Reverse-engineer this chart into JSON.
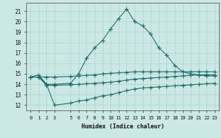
{
  "xlabel": "Humidex (Indice chaleur)",
  "bg_color": "#cce8e4",
  "grid_color": "#b0d8d4",
  "line_color": "#1a6b6b",
  "xlim": [
    -0.5,
    23.5
  ],
  "ylim": [
    11.5,
    21.8
  ],
  "yticks": [
    12,
    13,
    14,
    15,
    16,
    17,
    18,
    19,
    20,
    21
  ],
  "xticks": [
    0,
    1,
    2,
    3,
    5,
    6,
    7,
    8,
    9,
    10,
    11,
    12,
    13,
    14,
    15,
    16,
    17,
    18,
    19,
    20,
    21,
    22,
    23
  ],
  "line1_x": [
    0,
    1,
    2,
    3,
    5,
    6,
    7,
    8,
    9,
    10,
    11,
    12,
    13,
    14,
    15,
    16,
    17,
    18,
    19,
    20,
    21,
    22,
    23
  ],
  "line1_y": [
    14.7,
    14.9,
    14.0,
    14.0,
    14.1,
    15.0,
    16.5,
    17.5,
    18.2,
    19.3,
    20.3,
    21.2,
    20.0,
    19.6,
    18.8,
    17.5,
    16.8,
    15.8,
    15.2,
    15.0,
    14.9,
    14.8,
    14.8
  ],
  "line2_x": [
    0,
    1,
    2,
    3,
    5,
    6,
    7,
    8,
    9,
    10,
    11,
    12,
    13,
    14,
    15,
    16,
    17,
    18,
    19,
    20,
    21,
    22,
    23
  ],
  "line2_y": [
    14.7,
    14.7,
    14.7,
    14.7,
    14.75,
    14.8,
    14.85,
    14.9,
    15.0,
    15.05,
    15.1,
    15.15,
    15.2,
    15.2,
    15.2,
    15.2,
    15.2,
    15.2,
    15.2,
    15.2,
    15.2,
    15.2,
    15.2
  ],
  "line3_x": [
    0,
    1,
    2,
    3,
    5,
    6,
    7,
    8,
    9,
    10,
    11,
    12,
    13,
    14,
    15,
    16,
    17,
    18,
    19,
    20,
    21,
    22,
    23
  ],
  "line3_y": [
    14.7,
    14.7,
    13.9,
    13.9,
    13.95,
    14.0,
    14.05,
    14.1,
    14.15,
    14.2,
    14.3,
    14.4,
    14.5,
    14.55,
    14.6,
    14.65,
    14.7,
    14.75,
    14.8,
    14.85,
    14.9,
    14.9,
    14.9
  ],
  "line4_x": [
    0,
    1,
    2,
    3,
    5,
    6,
    7,
    8,
    9,
    10,
    11,
    12,
    13,
    14,
    15,
    16,
    17,
    18,
    19,
    20,
    21,
    22,
    23
  ],
  "line4_y": [
    14.7,
    14.7,
    14.0,
    12.0,
    12.2,
    12.4,
    12.5,
    12.7,
    12.9,
    13.0,
    13.2,
    13.4,
    13.55,
    13.65,
    13.7,
    13.75,
    13.8,
    13.85,
    13.9,
    13.95,
    14.0,
    14.05,
    14.1
  ]
}
